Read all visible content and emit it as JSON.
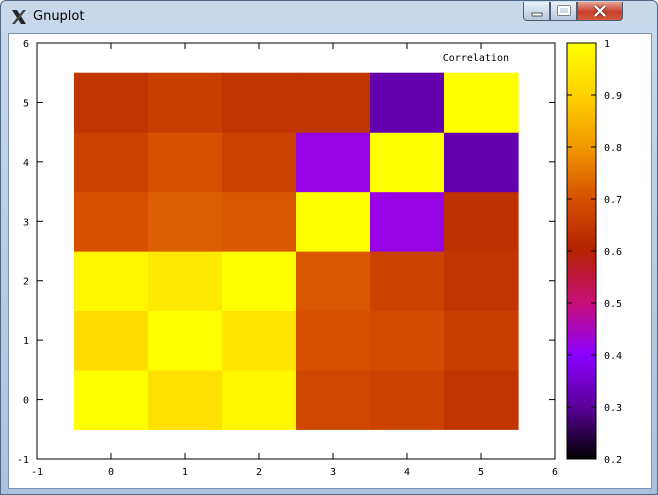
{
  "window": {
    "title": "Gnuplot",
    "icon": "x-logo-icon",
    "controls": [
      "minimize-icon",
      "maximize-icon",
      "close-icon"
    ]
  },
  "chart_data": {
    "type": "heatmap",
    "title": "Correlation",
    "xlabel": "",
    "ylabel": "",
    "xlim": [
      -1,
      6
    ],
    "ylim": [
      -1,
      6
    ],
    "x_ticks": [
      "-1",
      "0",
      "1",
      "2",
      "3",
      "4",
      "5",
      "6"
    ],
    "y_ticks": [
      "-1",
      "0",
      "1",
      "2",
      "3",
      "4",
      "5",
      "6"
    ],
    "colorbar": {
      "range": [
        0.2,
        1
      ],
      "ticks": [
        "0.2",
        "0.3",
        "0.4",
        "0.5",
        "0.6",
        "0.7",
        "0.8",
        "0.9",
        "1"
      ],
      "palette": [
        "#000000",
        "#5a0099",
        "#8b00ff",
        "#c8107a",
        "#b22200",
        "#d65000",
        "#f09800",
        "#ffd200",
        "#ffff00"
      ]
    },
    "rows": [
      {
        "y": 0,
        "values": [
          1.0,
          0.93,
          0.98,
          0.68,
          0.67,
          0.64
        ]
      },
      {
        "y": 1,
        "values": [
          0.92,
          1.0,
          0.94,
          0.7,
          0.69,
          0.66
        ]
      },
      {
        "y": 2,
        "values": [
          0.98,
          0.95,
          1.0,
          0.71,
          0.67,
          0.64
        ]
      },
      {
        "y": 3,
        "values": [
          0.7,
          0.72,
          0.71,
          1.0,
          0.42,
          0.63
        ]
      },
      {
        "y": 4,
        "values": [
          0.67,
          0.7,
          0.67,
          0.42,
          1.0,
          0.32
        ]
      },
      {
        "y": 5,
        "values": [
          0.64,
          0.66,
          0.64,
          0.64,
          0.32,
          1.0
        ]
      }
    ]
  }
}
